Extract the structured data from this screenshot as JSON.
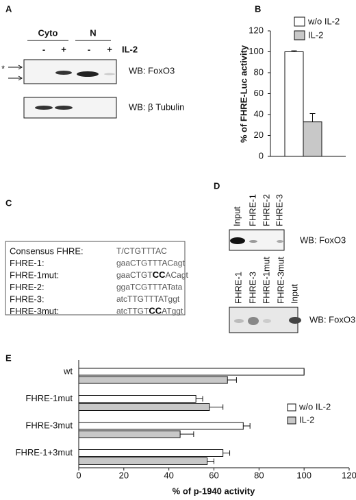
{
  "panel_labels": [
    "A",
    "B",
    "C",
    "D",
    "E"
  ],
  "panel_a": {
    "groups": [
      "Cyto",
      "N"
    ],
    "lanes": [
      "-",
      "+",
      "-",
      "+"
    ],
    "treatment": "IL-2",
    "marker": "*",
    "blots": [
      "WB: FoxO3",
      "WB: β Tubulin"
    ]
  },
  "chart_data": [
    {
      "type": "bar",
      "ylabel": "% of FHRE-Luc activity",
      "ylim": [
        0,
        120
      ],
      "yticks": [
        0,
        20,
        40,
        60,
        80,
        100,
        120
      ],
      "grid": false,
      "legend": "top-right",
      "categories": [
        null
      ],
      "series": [
        {
          "name": "w/o IL-2",
          "color": "#ffffff",
          "values": [
            100
          ],
          "errors": [
            1
          ]
        },
        {
          "name": "IL-2",
          "color": "#c8c8c8",
          "values": [
            33
          ],
          "errors": [
            8
          ]
        }
      ]
    },
    {
      "type": "barh",
      "xlabel": "% of p-1940 activity",
      "xlim": [
        0,
        120
      ],
      "xticks": [
        0,
        20,
        40,
        60,
        80,
        100,
        120
      ],
      "grid": false,
      "legend": "right",
      "categories": [
        "wt",
        "FHRE-1mut",
        "FHRE-3mut",
        "FHRE-1+3mut"
      ],
      "series": [
        {
          "name": "w/o IL-2",
          "color": "#ffffff",
          "values": [
            100,
            52,
            73,
            64
          ],
          "errors": [
            0,
            3,
            3,
            3
          ]
        },
        {
          "name": "IL-2",
          "color": "#c8c8c8",
          "values": [
            66,
            58,
            45,
            57
          ],
          "errors": [
            4,
            6,
            6,
            3
          ]
        }
      ]
    }
  ],
  "panel_c": {
    "rows": [
      {
        "name": "Consensus FHRE:",
        "sequence": [
          "T/CTGTTTAC"
        ]
      },
      {
        "name": "FHRE-1:",
        "sequence": [
          "gaaCTGTTTACagt"
        ]
      },
      {
        "name": "FHRE-1mut:",
        "sequence": [
          "gaaCTGT",
          "CC",
          "ACagt"
        ]
      },
      {
        "name": "FHRE-2:",
        "sequence": [
          "ggaTCGTTTATata"
        ]
      },
      {
        "name": "FHRE-3:",
        "sequence": [
          "atcTTGTTTATggt"
        ]
      },
      {
        "name": "FHRE-3mut:",
        "sequence": [
          "atcTTGT",
          "CC",
          "ATggt"
        ]
      }
    ]
  },
  "panel_d": {
    "blots": [
      {
        "lanes": [
          "Input",
          "FHRE-1",
          "FHRE-2",
          "FHRE-3"
        ],
        "label": "WB: FoxO3"
      },
      {
        "lanes": [
          "FHRE-1",
          "FHRE-3",
          "FHRE-1mut",
          "FHRE-3mut",
          "Input"
        ],
        "label": "WB: FoxO3"
      }
    ]
  }
}
